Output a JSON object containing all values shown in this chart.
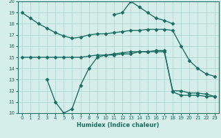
{
  "xlabel": "Humidex (Indice chaleur)",
  "xlim": [
    -0.5,
    23.5
  ],
  "ylim": [
    10,
    20
  ],
  "yticks": [
    10,
    11,
    12,
    13,
    14,
    15,
    16,
    17,
    18,
    19,
    20
  ],
  "xticks": [
    0,
    1,
    2,
    3,
    4,
    5,
    6,
    7,
    8,
    9,
    10,
    11,
    12,
    13,
    14,
    15,
    16,
    17,
    18,
    19,
    20,
    21,
    22,
    23
  ],
  "background_color": "#d5eee9",
  "grid_color": "#aad4cc",
  "line_color": "#1a6e62",
  "line_width": 1.0,
  "marker": "D",
  "marker_size": 2.5,
  "series": [
    {
      "x": [
        0,
        1,
        2,
        3,
        4,
        5,
        6,
        7,
        8,
        9,
        10,
        11,
        12,
        13,
        14,
        15,
        16,
        17,
        18,
        19,
        20,
        21,
        22,
        23
      ],
      "y": [
        19,
        18.5,
        18.0,
        17.6,
        17.2,
        16.9,
        16.7,
        16.8,
        17.0,
        17.1,
        17.1,
        17.2,
        17.3,
        17.4,
        17.4,
        17.5,
        17.5,
        17.5,
        17.4,
        16.0,
        14.7,
        14.0,
        13.5,
        13.3
      ]
    },
    {
      "x": [
        11,
        12,
        13,
        14,
        15,
        16,
        17,
        18
      ],
      "y": [
        18.8,
        19.0,
        20.0,
        19.5,
        19.0,
        18.5,
        18.3,
        18.0
      ]
    },
    {
      "x": [
        0,
        1,
        2,
        3,
        4,
        5,
        6,
        7,
        8,
        9,
        10,
        11,
        12,
        13,
        14,
        15,
        16,
        17,
        18,
        19,
        20,
        21,
        22,
        23
      ],
      "y": [
        15.0,
        15.0,
        15.0,
        15.0,
        15.0,
        15.0,
        15.0,
        15.0,
        15.1,
        15.2,
        15.2,
        15.3,
        15.4,
        15.5,
        15.5,
        15.5,
        15.5,
        15.5,
        12.0,
        12.0,
        11.8,
        11.8,
        11.7,
        11.5
      ]
    },
    {
      "x": [
        3,
        4,
        5,
        6,
        7,
        8,
        9,
        10,
        11,
        12,
        13,
        14,
        15,
        16,
        17,
        18,
        19,
        20,
        21,
        22,
        23
      ],
      "y": [
        13.0,
        11.0,
        10.0,
        10.4,
        12.5,
        14.0,
        15.0,
        15.2,
        15.2,
        15.3,
        15.3,
        15.5,
        15.5,
        15.6,
        15.6,
        11.9,
        11.6,
        11.6,
        11.6,
        11.5,
        11.5
      ]
    }
  ]
}
